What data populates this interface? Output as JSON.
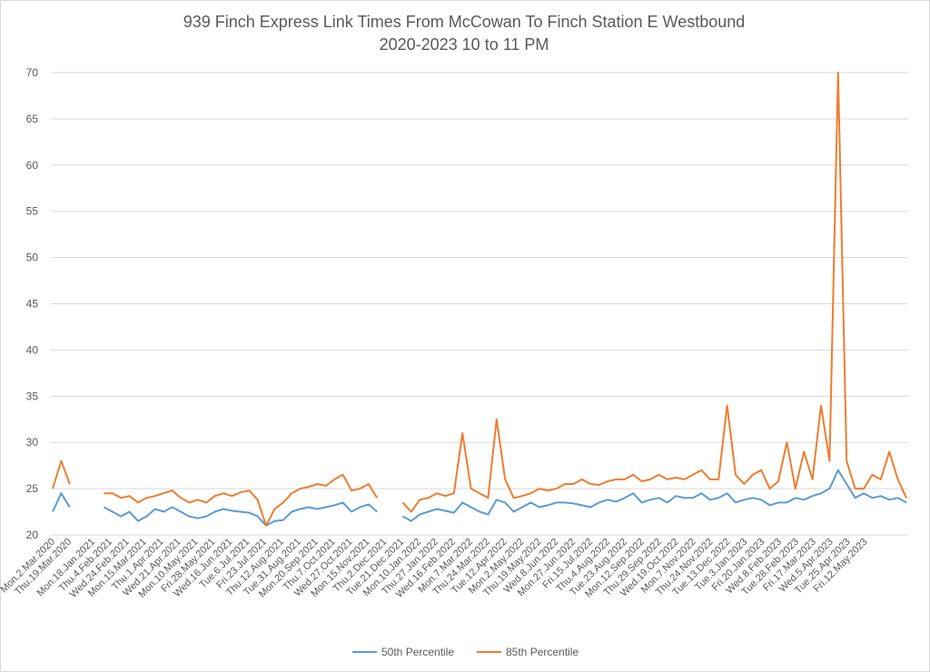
{
  "chart_data": {
    "type": "line",
    "title": "939 Finch Express Link Times From McCowan To Finch Station E Westbound",
    "subtitle": "2020-2023 10 to 11 PM",
    "xlabel": "",
    "ylabel": "",
    "ylim": [
      20,
      70
    ],
    "yticks": [
      20,
      25,
      30,
      35,
      40,
      45,
      50,
      55,
      60,
      65,
      70
    ],
    "grid": true,
    "legend_position": "bottom",
    "x_tick_labels": [
      "Mon.2.Mar.2020",
      "Thu.19.Mar.2020",
      "Mon.18.Jan.2021",
      "Thu.4.Feb.2021",
      "Wed.24.Feb.2021",
      "Mon.15.Mar.2021",
      "Thu.1.Apr.2021",
      "Wed.21.Apr.2021",
      "Mon.10.May.2021",
      "Fri.28.May.2021",
      "Wed.16.Jun.2021",
      "Tue.6.Jul.2021",
      "Fri.23.Jul.2021",
      "Thu.12.Aug.2021",
      "Tue.31.Aug.2021",
      "Mon.20.Sep.2021",
      "Thu.7.Oct.2021",
      "Wed.27.Oct.2021",
      "Mon.15.Nov.2021",
      "Thu.2.Dec.2021",
      "Tue.21.Dec.2021",
      "Mon.10.Jan.2022",
      "Thu.27.Jan.2022",
      "Wed.16.Feb.2022",
      "Mon.7.Mar.2022",
      "Thu.24.Mar.2022",
      "Tue.12.Apr.2022",
      "Mon.2.May.2022",
      "Thu.19.May.2022",
      "Wed.8.Jun.2022",
      "Mon.27.Jun.2022",
      "Fri.15.Jul.2022",
      "Thu.4.Aug.2022",
      "Tue.23.Aug.2022",
      "Mon.12.Sep.2022",
      "Thu.29.Sep.2022",
      "Wed.19.Oct.2022",
      "Mon.7.Nov.2022",
      "Thu.24.Nov.2022",
      "Tue.13.Dec.2022",
      "Tue.3.Jan.2023",
      "Fri.20.Jan.2023",
      "Wed.8.Feb.2023",
      "Tue.28.Feb.2023",
      "Fri.17.Mar.2023",
      "Wed.5.Apr.2023",
      "Tue.25.Apr.2023",
      "Fri.12.May.2023"
    ],
    "series": [
      {
        "name": "50th Percentile",
        "color": "#5B9BD5",
        "values": [
          22.5,
          24.5,
          23,
          null,
          null,
          null,
          23,
          22.5,
          22,
          22.5,
          21.5,
          22,
          22.8,
          22.5,
          23,
          22.5,
          22,
          21.8,
          22,
          22.5,
          22.8,
          22.6,
          22.5,
          22.4,
          22,
          21,
          21.5,
          21.6,
          22.5,
          22.8,
          23,
          22.8,
          23,
          23.2,
          23.5,
          22.5,
          23,
          23.3,
          22.5,
          null,
          null,
          22,
          21.5,
          22.2,
          22.5,
          22.8,
          22.6,
          22.4,
          23.5,
          23,
          22.5,
          22.2,
          23.8,
          23.5,
          22.5,
          23,
          23.5,
          23,
          23.2,
          23.5,
          23.5,
          23.4,
          23.2,
          23,
          23.5,
          23.8,
          23.6,
          24,
          24.5,
          23.5,
          23.8,
          24,
          23.5,
          24.2,
          24,
          24,
          24.5,
          23.8,
          24,
          24.5,
          23.5,
          23.8,
          24,
          23.8,
          23.2,
          23.5,
          23.5,
          24,
          23.8,
          24.2,
          24.5,
          25,
          27,
          25.5,
          24,
          24.5,
          24,
          24.2,
          23.8,
          24,
          23.5
        ]
      },
      {
        "name": "85th Percentile",
        "color": "#ED7D31",
        "values": [
          25,
          28,
          25.5,
          null,
          null,
          null,
          24.5,
          24.5,
          24,
          24.2,
          23.5,
          24,
          24.2,
          24.5,
          24.8,
          24,
          23.5,
          23.8,
          23.5,
          24.2,
          24.5,
          24.2,
          24.6,
          24.8,
          23.8,
          21,
          22.8,
          23.5,
          24.5,
          25,
          25.2,
          25.5,
          25.3,
          26,
          26.5,
          24.8,
          25,
          25.5,
          24,
          null,
          null,
          23.5,
          22.5,
          23.8,
          24,
          24.5,
          24.2,
          24.5,
          31,
          25,
          24.5,
          24,
          32.5,
          26,
          24,
          24.2,
          24.5,
          25,
          24.8,
          25,
          25.5,
          25.5,
          26,
          25.5,
          25.4,
          25.8,
          26,
          26,
          26.5,
          25.8,
          26,
          26.5,
          26,
          26.2,
          26,
          26.5,
          27,
          26,
          26,
          34,
          26.5,
          25.5,
          26.5,
          27,
          25,
          25.8,
          30,
          25,
          29,
          26,
          34,
          28,
          70,
          28,
          25,
          25,
          26.5,
          26,
          29,
          26,
          24
        ]
      }
    ]
  }
}
